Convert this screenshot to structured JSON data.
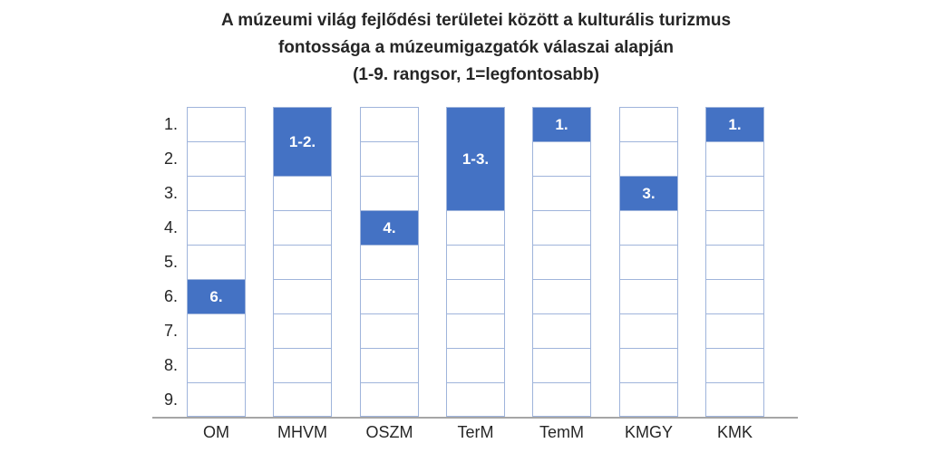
{
  "title": {
    "lines": [
      "A múzeumi világ fejlődési területei között a kulturális turizmus",
      "fontossága a múzeumigazgatók válaszai alapján",
      "(1-9. rangsor, 1=legfontosabb)"
    ]
  },
  "chart_data": {
    "type": "bar",
    "subtype": "ranked-cell-grid-floating-bars",
    "title": "A múzeumi világ fejlődési területei között a kulturális turizmus fontossága a múzeumigazgatók válaszai alapján (1-9. rangsor, 1=legfontosabb)",
    "categories": [
      "OM",
      "MHVM",
      "OSZM",
      "TerM",
      "TemM",
      "KMGY",
      "KMK"
    ],
    "y_axis": {
      "tick_labels": [
        "1.",
        "2.",
        "3.",
        "4.",
        "5.",
        "6.",
        "7.",
        "8.",
        "9."
      ],
      "min": 1,
      "max": 9,
      "inverted": true,
      "note": "1=legfontosabb"
    },
    "bars": [
      {
        "category": "OM",
        "rank_start": 6,
        "rank_end": 6,
        "label": "6."
      },
      {
        "category": "MHVM",
        "rank_start": 1,
        "rank_end": 2,
        "label": "1-2."
      },
      {
        "category": "OSZM",
        "rank_start": 4,
        "rank_end": 4,
        "label": "4."
      },
      {
        "category": "TerM",
        "rank_start": 1,
        "rank_end": 3,
        "label": "1-3."
      },
      {
        "category": "TemM",
        "rank_start": 1,
        "rank_end": 1,
        "label": "1."
      },
      {
        "category": "KMGY",
        "rank_start": 3,
        "rank_end": 3,
        "label": "3."
      },
      {
        "category": "KMK",
        "rank_start": 1,
        "rank_end": 1,
        "label": "1."
      }
    ],
    "legend": "none",
    "grid": true,
    "colors": {
      "fill": "#4472C4",
      "cell_border": "#9FB4DB",
      "axis_line": "#A6A6A6",
      "text": "#262626",
      "fill_label_text": "#FFFFFF",
      "background": "#FFFFFF"
    }
  }
}
